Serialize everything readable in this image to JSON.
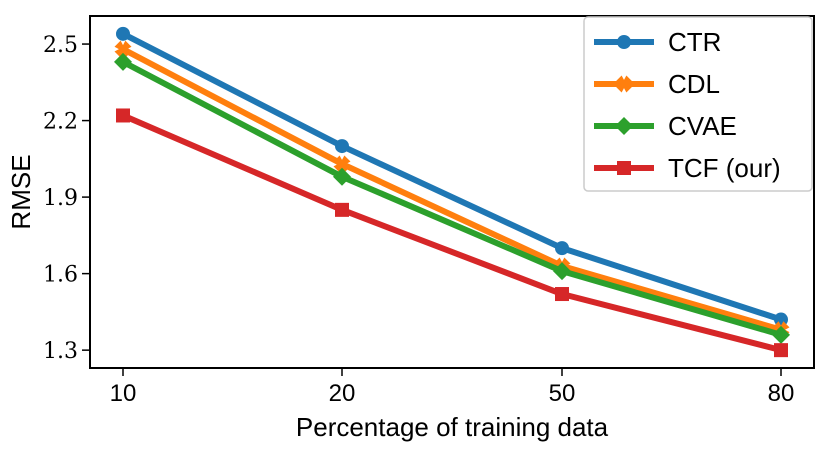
{
  "chart_data": {
    "type": "line",
    "title": "",
    "xlabel": "Percentage of training data",
    "ylabel": "RMSE",
    "categories": [
      "10",
      "20",
      "50",
      "80"
    ],
    "yticks": [
      "1.3",
      "1.6",
      "1.9",
      "2.2",
      "2.5"
    ],
    "ylim": [
      1.23,
      2.61
    ],
    "legend_position": "top-right",
    "series": [
      {
        "name": "CTR",
        "color": "#1f77b4",
        "marker": "circle",
        "values": [
          2.54,
          2.1,
          1.7,
          1.42
        ]
      },
      {
        "name": "CDL",
        "color": "#ff7f0e",
        "marker": "x",
        "values": [
          2.48,
          2.03,
          1.63,
          1.38
        ]
      },
      {
        "name": "CVAE",
        "color": "#2ca02c",
        "marker": "diamond",
        "values": [
          2.43,
          1.98,
          1.61,
          1.36
        ]
      },
      {
        "name": "TCF (our)",
        "color": "#d62728",
        "marker": "square",
        "values": [
          2.22,
          1.85,
          1.52,
          1.3
        ]
      }
    ]
  }
}
